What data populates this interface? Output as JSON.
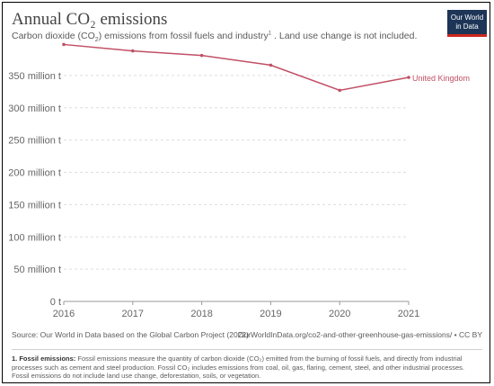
{
  "header": {
    "title": "Annual CO₂ emissions",
    "subtitle_before": "Carbon dioxide (CO",
    "subtitle_sub": "2",
    "subtitle_mid": ") emissions from fossil fuels and industry",
    "subtitle_sup": "1",
    "subtitle_after": " . Land use change is not included.",
    "logo_line1": "Our World",
    "logo_line2": "in Data"
  },
  "footer": {
    "source": "Source: Our World in Data based on the Global Carbon Project (2022)",
    "url": "OurWorldInData.org/co2-and-other-greenhouse-gas-emissions/ • CC BY",
    "footnote_label": "1. Fossil emissions:",
    "footnote_text": " Fossil emissions measure the quantity of carbon dioxide (CO₂) emitted from the burning of fossil fuels, and directly from industrial processes such as cement and steel production. Fossil CO₂ includes emissions from coal, oil, gas, flaring, cement, steel, and other industrial processes. Fossil emissions do not include land use change, deforestation, soils, or vegetation."
  },
  "colors": {
    "series": "#c15065",
    "logo_bg": "#1d3557",
    "logo_bar": "#ce261e"
  },
  "chart_data": {
    "type": "line",
    "x": [
      2016,
      2017,
      2018,
      2019,
      2020,
      2021
    ],
    "series": [
      {
        "name": "United Kingdom",
        "values": [
          398,
          388,
          381,
          366,
          327,
          347
        ]
      }
    ],
    "xticks": [
      "2016",
      "2017",
      "2018",
      "2019",
      "2020",
      "2021"
    ],
    "yticks": [
      0,
      50,
      100,
      150,
      200,
      250,
      300,
      350
    ],
    "ytick_labels": [
      "0 t",
      "50 million t",
      "100 million t",
      "150 million t",
      "200 million t",
      "250 million t",
      "300 million t",
      "350 million t"
    ],
    "ylim": [
      0,
      400
    ],
    "grid": "horizontal dashed"
  }
}
